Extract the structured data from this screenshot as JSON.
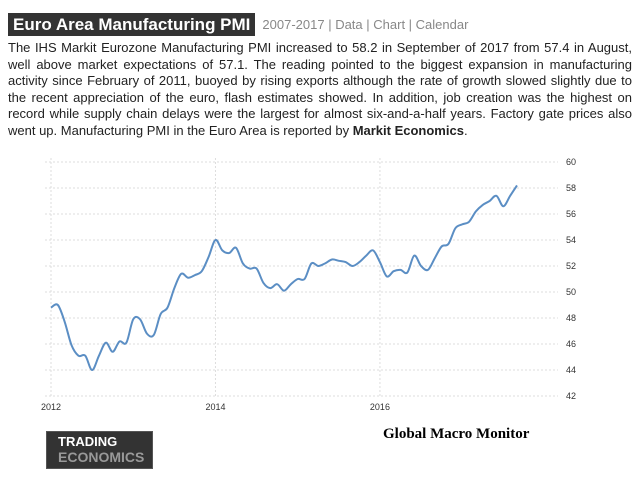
{
  "header": {
    "title": "Euro Area Manufacturing PMI",
    "links": [
      "2007-2017",
      "Data",
      "Chart",
      "Calendar"
    ]
  },
  "description": {
    "text": "The IHS Markit Eurozone Manufacturing PMI increased to 58.2 in September of 2017 from 57.4 in August, well above market expectations of 57.1. The reading pointed to the biggest expansion in manufacturing activity since February of 2011, buoyed by rising exports although the rate of growth slowed slightly due to the recent appreciation of the euro, flash estimates showed. In addition, job creation was the highest on record while supply chain delays were the largest for almost six-and-a-half years. Factory gate prices also went up. Manufacturing PMI in the Euro Area is reported by ",
    "source": "Markit Economics",
    "end": "."
  },
  "chart_data": {
    "type": "line",
    "x_start": "2012-01",
    "x_end": "2017-09",
    "frequency": "monthly",
    "xticks": [
      "2012",
      "2014",
      "2016"
    ],
    "yticks": [
      42,
      44,
      46,
      48,
      50,
      52,
      54,
      56,
      58,
      60
    ],
    "ylim": [
      42,
      60
    ],
    "y_axis_side": "right",
    "grid": true,
    "line_color": "#5b8ec4",
    "values": [
      48.8,
      49.0,
      47.7,
      45.9,
      45.1,
      45.1,
      44.0,
      45.1,
      46.1,
      45.4,
      46.2,
      46.1,
      47.9,
      47.9,
      46.8,
      46.7,
      48.3,
      48.8,
      50.3,
      51.4,
      51.1,
      51.3,
      51.6,
      52.7,
      54.0,
      53.2,
      53.0,
      53.4,
      52.2,
      51.8,
      51.8,
      50.7,
      50.3,
      50.6,
      50.1,
      50.6,
      51.0,
      51.0,
      52.2,
      52.0,
      52.2,
      52.5,
      52.4,
      52.3,
      52.0,
      52.3,
      52.8,
      53.2,
      52.3,
      51.2,
      51.6,
      51.7,
      51.5,
      52.8,
      52.0,
      51.7,
      52.6,
      53.5,
      53.7,
      54.9,
      55.2,
      55.4,
      56.2,
      56.7,
      57.0,
      57.4,
      56.6,
      57.4,
      58.2
    ]
  },
  "footer": {
    "logo_line1": "TRADING",
    "logo_line2": "ECONOMICS",
    "credit": "Global Macro Monitor"
  }
}
